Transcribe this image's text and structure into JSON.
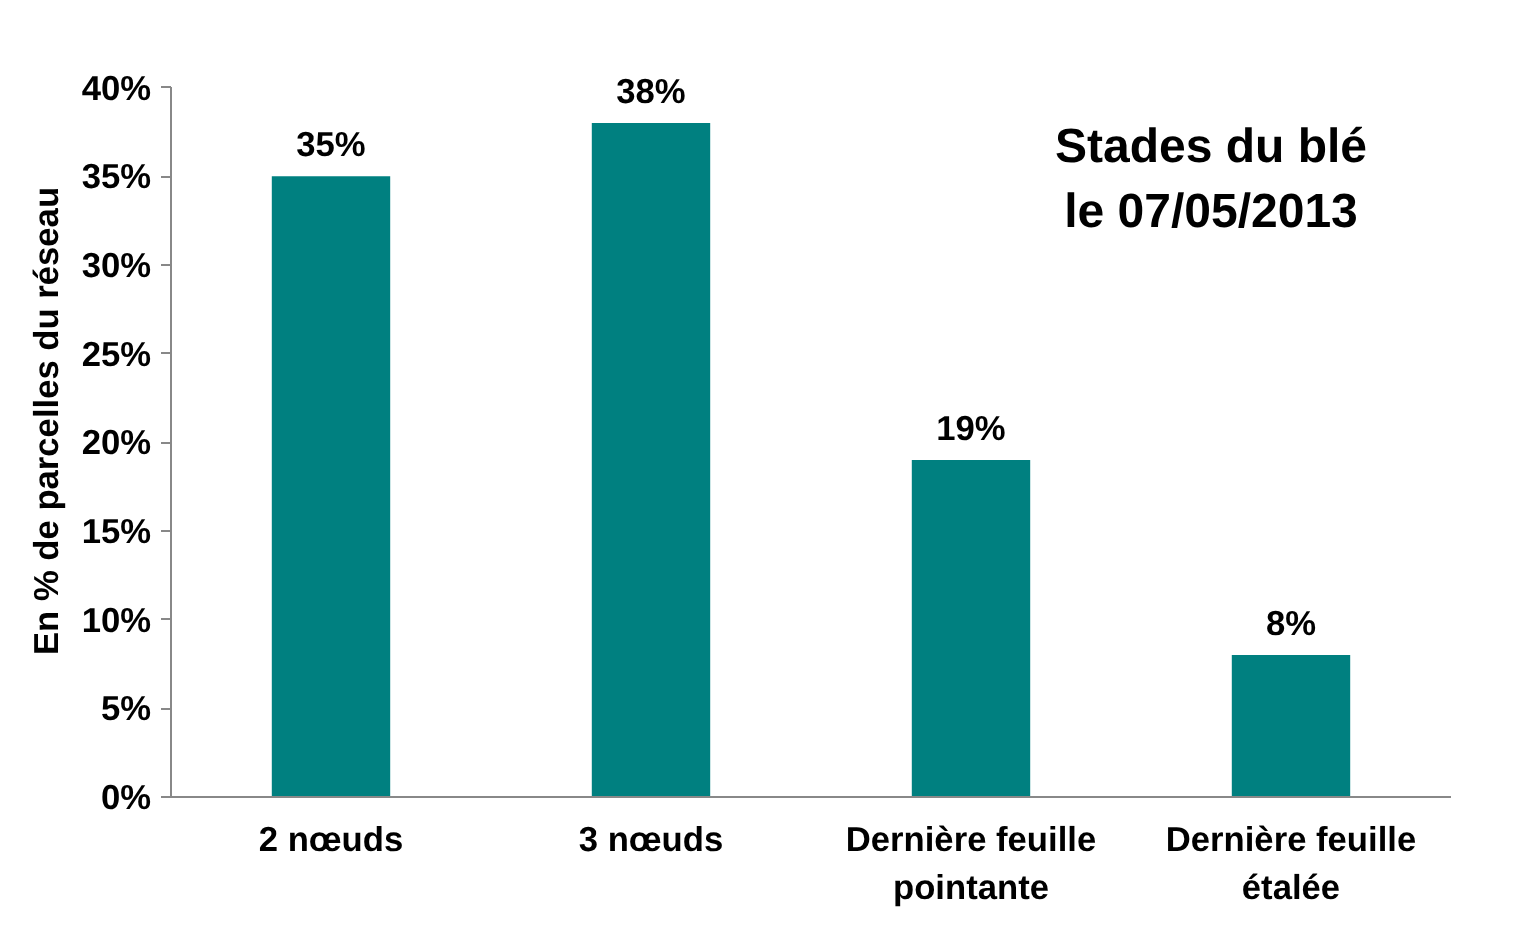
{
  "chart_data": {
    "type": "bar",
    "title": "Stades du blé le 07/05/2013",
    "ylabel": "En % de parcelles du réseau",
    "categories": [
      "2 nœuds",
      "3 nœuds",
      "Dernière feuille pointante",
      "Dernière feuille étalée"
    ],
    "values": [
      35,
      38,
      19,
      8
    ],
    "color": "#008080",
    "value_labels": [
      "35%",
      "38%",
      "19%",
      "8%"
    ],
    "ylim": [
      0,
      40
    ],
    "yticks": [
      {
        "value": 0,
        "label": "0%"
      },
      {
        "value": 5,
        "label": "5%"
      },
      {
        "value": 10,
        "label": "10%"
      },
      {
        "value": 15,
        "label": "15%"
      },
      {
        "value": 20,
        "label": "20%"
      },
      {
        "value": 25,
        "label": "25%"
      },
      {
        "value": 30,
        "label": "30%"
      },
      {
        "value": 35,
        "label": "35%"
      },
      {
        "value": 40,
        "label": "40%"
      }
    ],
    "grid": false
  }
}
